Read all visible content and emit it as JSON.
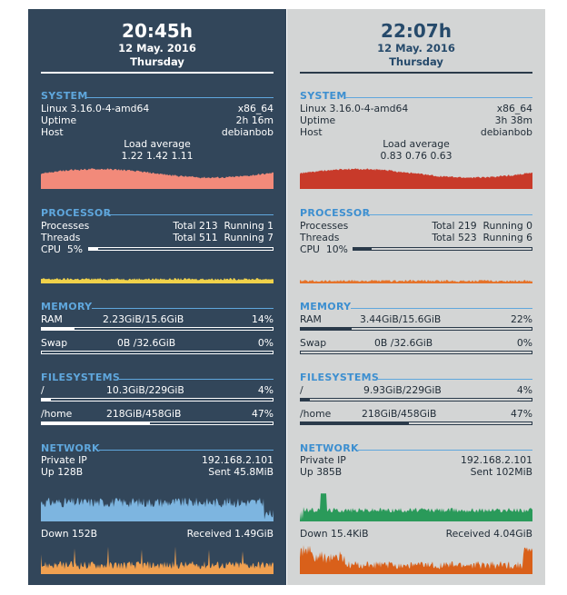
{
  "colors": {
    "left_panel_bg": "#32465a",
    "right_panel_bg": "#d3d5d5",
    "section_title": "#5fa7dd"
  },
  "panels": [
    {
      "id": "left",
      "time": "20:45h",
      "date": "12 May. 2016",
      "day": "Thursday",
      "system": {
        "title": "SYSTEM",
        "os": "Linux 3.16.0-4-amd64",
        "arch": "x86_64",
        "uptime_label": "Uptime",
        "uptime": "2h 16m",
        "host_label": "Host",
        "host": "debianbob",
        "load_label": "Load average",
        "load_values": "1.22 1.42 1.11",
        "graph_color": "#f28a7a"
      },
      "processor": {
        "title": "PROCESSOR",
        "processes_label": "Processes",
        "processes_total": "Total 213",
        "processes_running": "Running 1",
        "threads_label": "Threads",
        "threads_total": "Total 511",
        "threads_running": "Running 7",
        "cpu_label": "CPU",
        "cpu_value": "5%",
        "cpu_fraction": 0.05,
        "graph_color": "#f0d24a"
      },
      "memory": {
        "title": "MEMORY",
        "ram_label": "RAM",
        "ram_value": "2.23GiB/15.6GiB",
        "ram_pct": "14%",
        "ram_fraction": 0.14,
        "swap_label": "Swap",
        "swap_value": "0B  /32.6GiB",
        "swap_pct": "0%",
        "swap_fraction": 0.0
      },
      "filesystems": {
        "title": "FILESYSTEMS",
        "root_label": "/",
        "root_value": "10.3GiB/229GiB",
        "root_pct": "4%",
        "root_fraction": 0.04,
        "home_label": "/home",
        "home_value": "218GiB/458GiB",
        "home_pct": "47%",
        "home_fraction": 0.47
      },
      "network": {
        "title": "NETWORK",
        "ip_label": "Private IP",
        "ip": "192.168.2.101",
        "up_label": "Up 128B",
        "sent_label": "Sent 45.8MiB",
        "up_graph_color": "#7db5e0",
        "down_label": "Down 152B",
        "received_label": "Received 1.49GiB",
        "down_graph_color": "#f0a050"
      }
    },
    {
      "id": "right",
      "time": "22:07h",
      "date": "12 May. 2016",
      "day": "Thursday",
      "system": {
        "title": "SYSTEM",
        "os": "Linux 3.16.0-4-amd64",
        "arch": "x86_64",
        "uptime_label": "Uptime",
        "uptime": "3h 38m",
        "host_label": "Host",
        "host": "debianbob",
        "load_label": "Load average",
        "load_values": "0.83 0.76 0.63",
        "graph_color": "#c83a2a"
      },
      "processor": {
        "title": "PROCESSOR",
        "processes_label": "Processes",
        "processes_total": "Total 219",
        "processes_running": "Running 0",
        "threads_label": "Threads",
        "threads_total": "Total 523",
        "threads_running": "Running 6",
        "cpu_label": "CPU",
        "cpu_value": "10%",
        "cpu_fraction": 0.1,
        "graph_color": "#e5732a"
      },
      "memory": {
        "title": "MEMORY",
        "ram_label": "RAM",
        "ram_value": "3.44GiB/15.6GiB",
        "ram_pct": "22%",
        "ram_fraction": 0.22,
        "swap_label": "Swap",
        "swap_value": "0B  /32.6GiB",
        "swap_pct": "0%",
        "swap_fraction": 0.0
      },
      "filesystems": {
        "title": "FILESYSTEMS",
        "root_label": "/",
        "root_value": "9.93GiB/229GiB",
        "root_pct": "4%",
        "root_fraction": 0.04,
        "home_label": "/home",
        "home_value": "218GiB/458GiB",
        "home_pct": "47%",
        "home_fraction": 0.47
      },
      "network": {
        "title": "NETWORK",
        "ip_label": "Private IP",
        "ip": "192.168.2.101",
        "up_label": "Up 385B",
        "sent_label": "Sent 102MiB",
        "up_graph_color": "#2a9a5a",
        "down_label": "Down 15.4KiB",
        "received_label": "Received 4.04GiB",
        "down_graph_color": "#d9601a"
      }
    }
  ]
}
